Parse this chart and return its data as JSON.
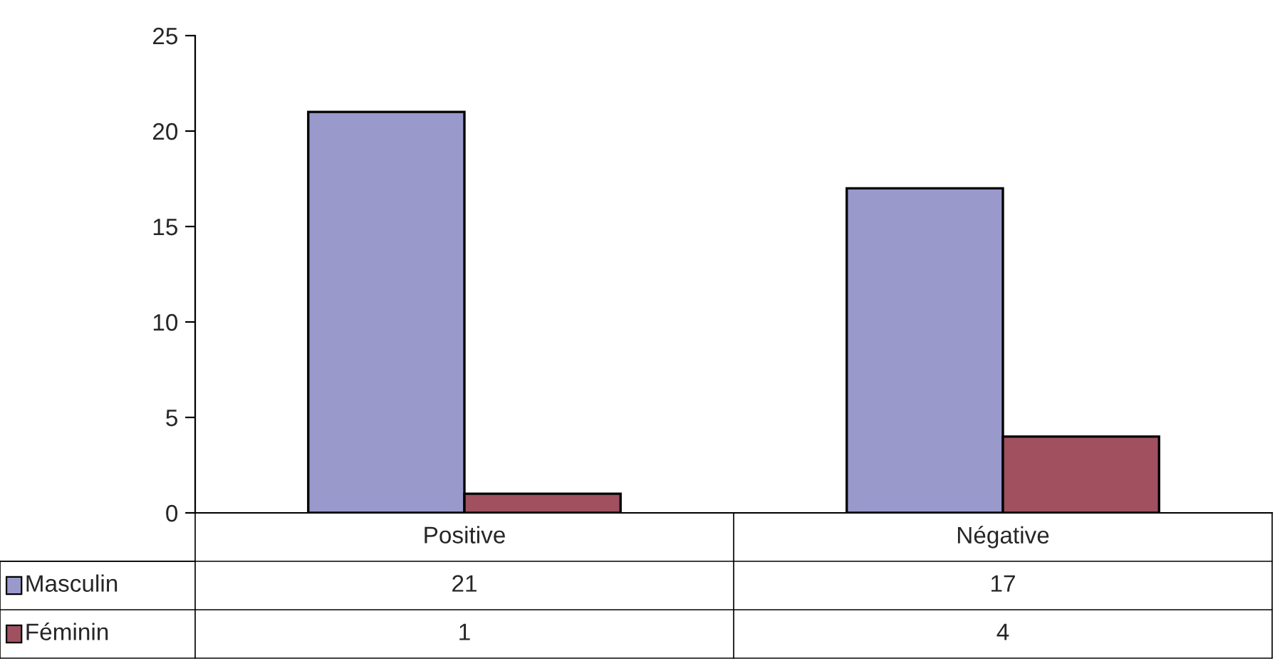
{
  "chart_data": {
    "type": "bar",
    "categories": [
      "Positive",
      "Négative"
    ],
    "series": [
      {
        "name": "Masculin",
        "color": "#9999cc",
        "values": [
          21,
          17
        ]
      },
      {
        "name": "Féminin",
        "color": "#a0505f",
        "values": [
          1,
          4
        ]
      }
    ],
    "ylim": [
      0,
      25
    ],
    "yticks": [
      0,
      5,
      10,
      15,
      20,
      25
    ],
    "grid": false,
    "legend": "bottom",
    "data_labels": true
  }
}
